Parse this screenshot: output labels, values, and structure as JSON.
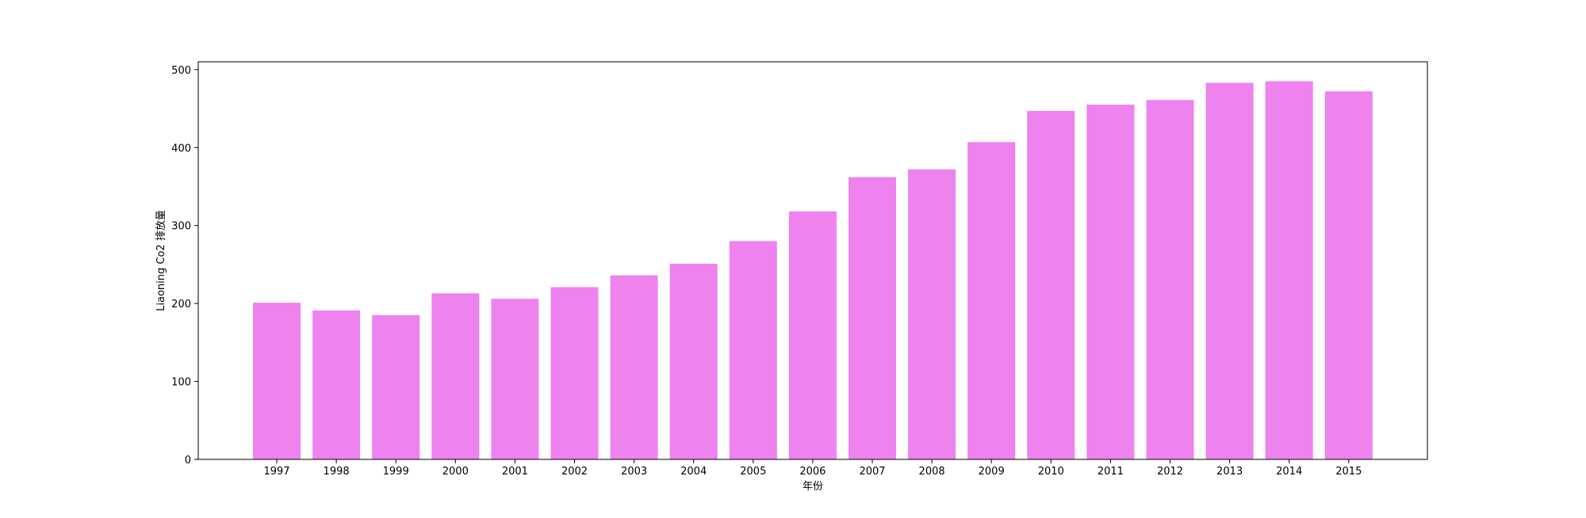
{
  "chart_data": {
    "type": "bar",
    "title": "",
    "xlabel": "年份",
    "ylabel": "Liaoning Co2 排放量",
    "categories": [
      "1997",
      "1998",
      "1999",
      "2000",
      "2001",
      "2002",
      "2003",
      "2004",
      "2005",
      "2006",
      "2007",
      "2008",
      "2009",
      "2010",
      "2011",
      "2012",
      "2013",
      "2014",
      "2015"
    ],
    "values": [
      201,
      191,
      185,
      213,
      206,
      221,
      236,
      251,
      280,
      318,
      362,
      372,
      407,
      447,
      455,
      461,
      483,
      485,
      472
    ],
    "ylim": [
      0,
      510
    ],
    "yticks": [
      0,
      100,
      200,
      300,
      400,
      500
    ],
    "bar_color": "#ee82ee",
    "grid": false,
    "legend": "none"
  }
}
